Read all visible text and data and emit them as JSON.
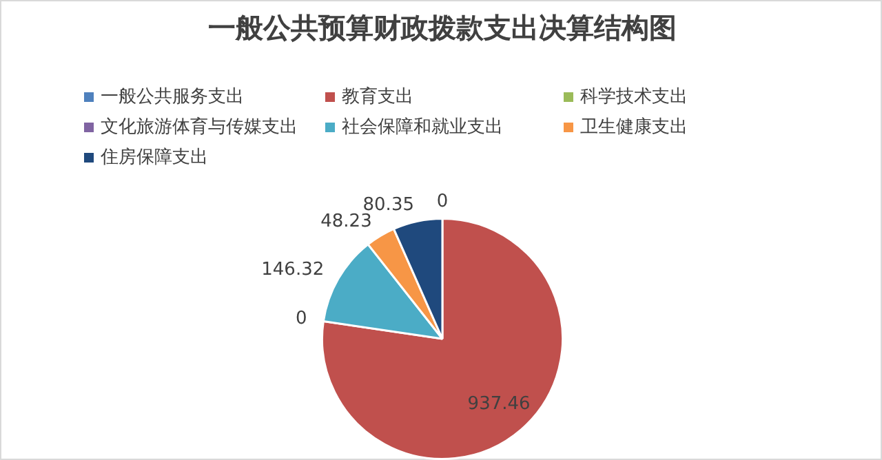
{
  "chart_data": {
    "type": "pie",
    "title": "一般公共预算财政拨款支出决算结构图",
    "categories": [
      "一般公共服务支出",
      "教育支出",
      "科学技术支出",
      "文化旅游体育与传媒支出",
      "社会保障和就业支出",
      "卫生健康支出",
      "住房保障支出"
    ],
    "values": [
      0,
      937.46,
      0,
      0,
      146.32,
      48.23,
      80.35
    ],
    "colors": [
      "#4f81bd",
      "#c0504d",
      "#9bbb59",
      "#8064a2",
      "#4bacc6",
      "#f79646",
      "#1f497d"
    ],
    "value_labels": [
      "0",
      "937.46",
      "0",
      null,
      "146.32",
      "48.23",
      "80.35"
    ],
    "legend": "top"
  }
}
